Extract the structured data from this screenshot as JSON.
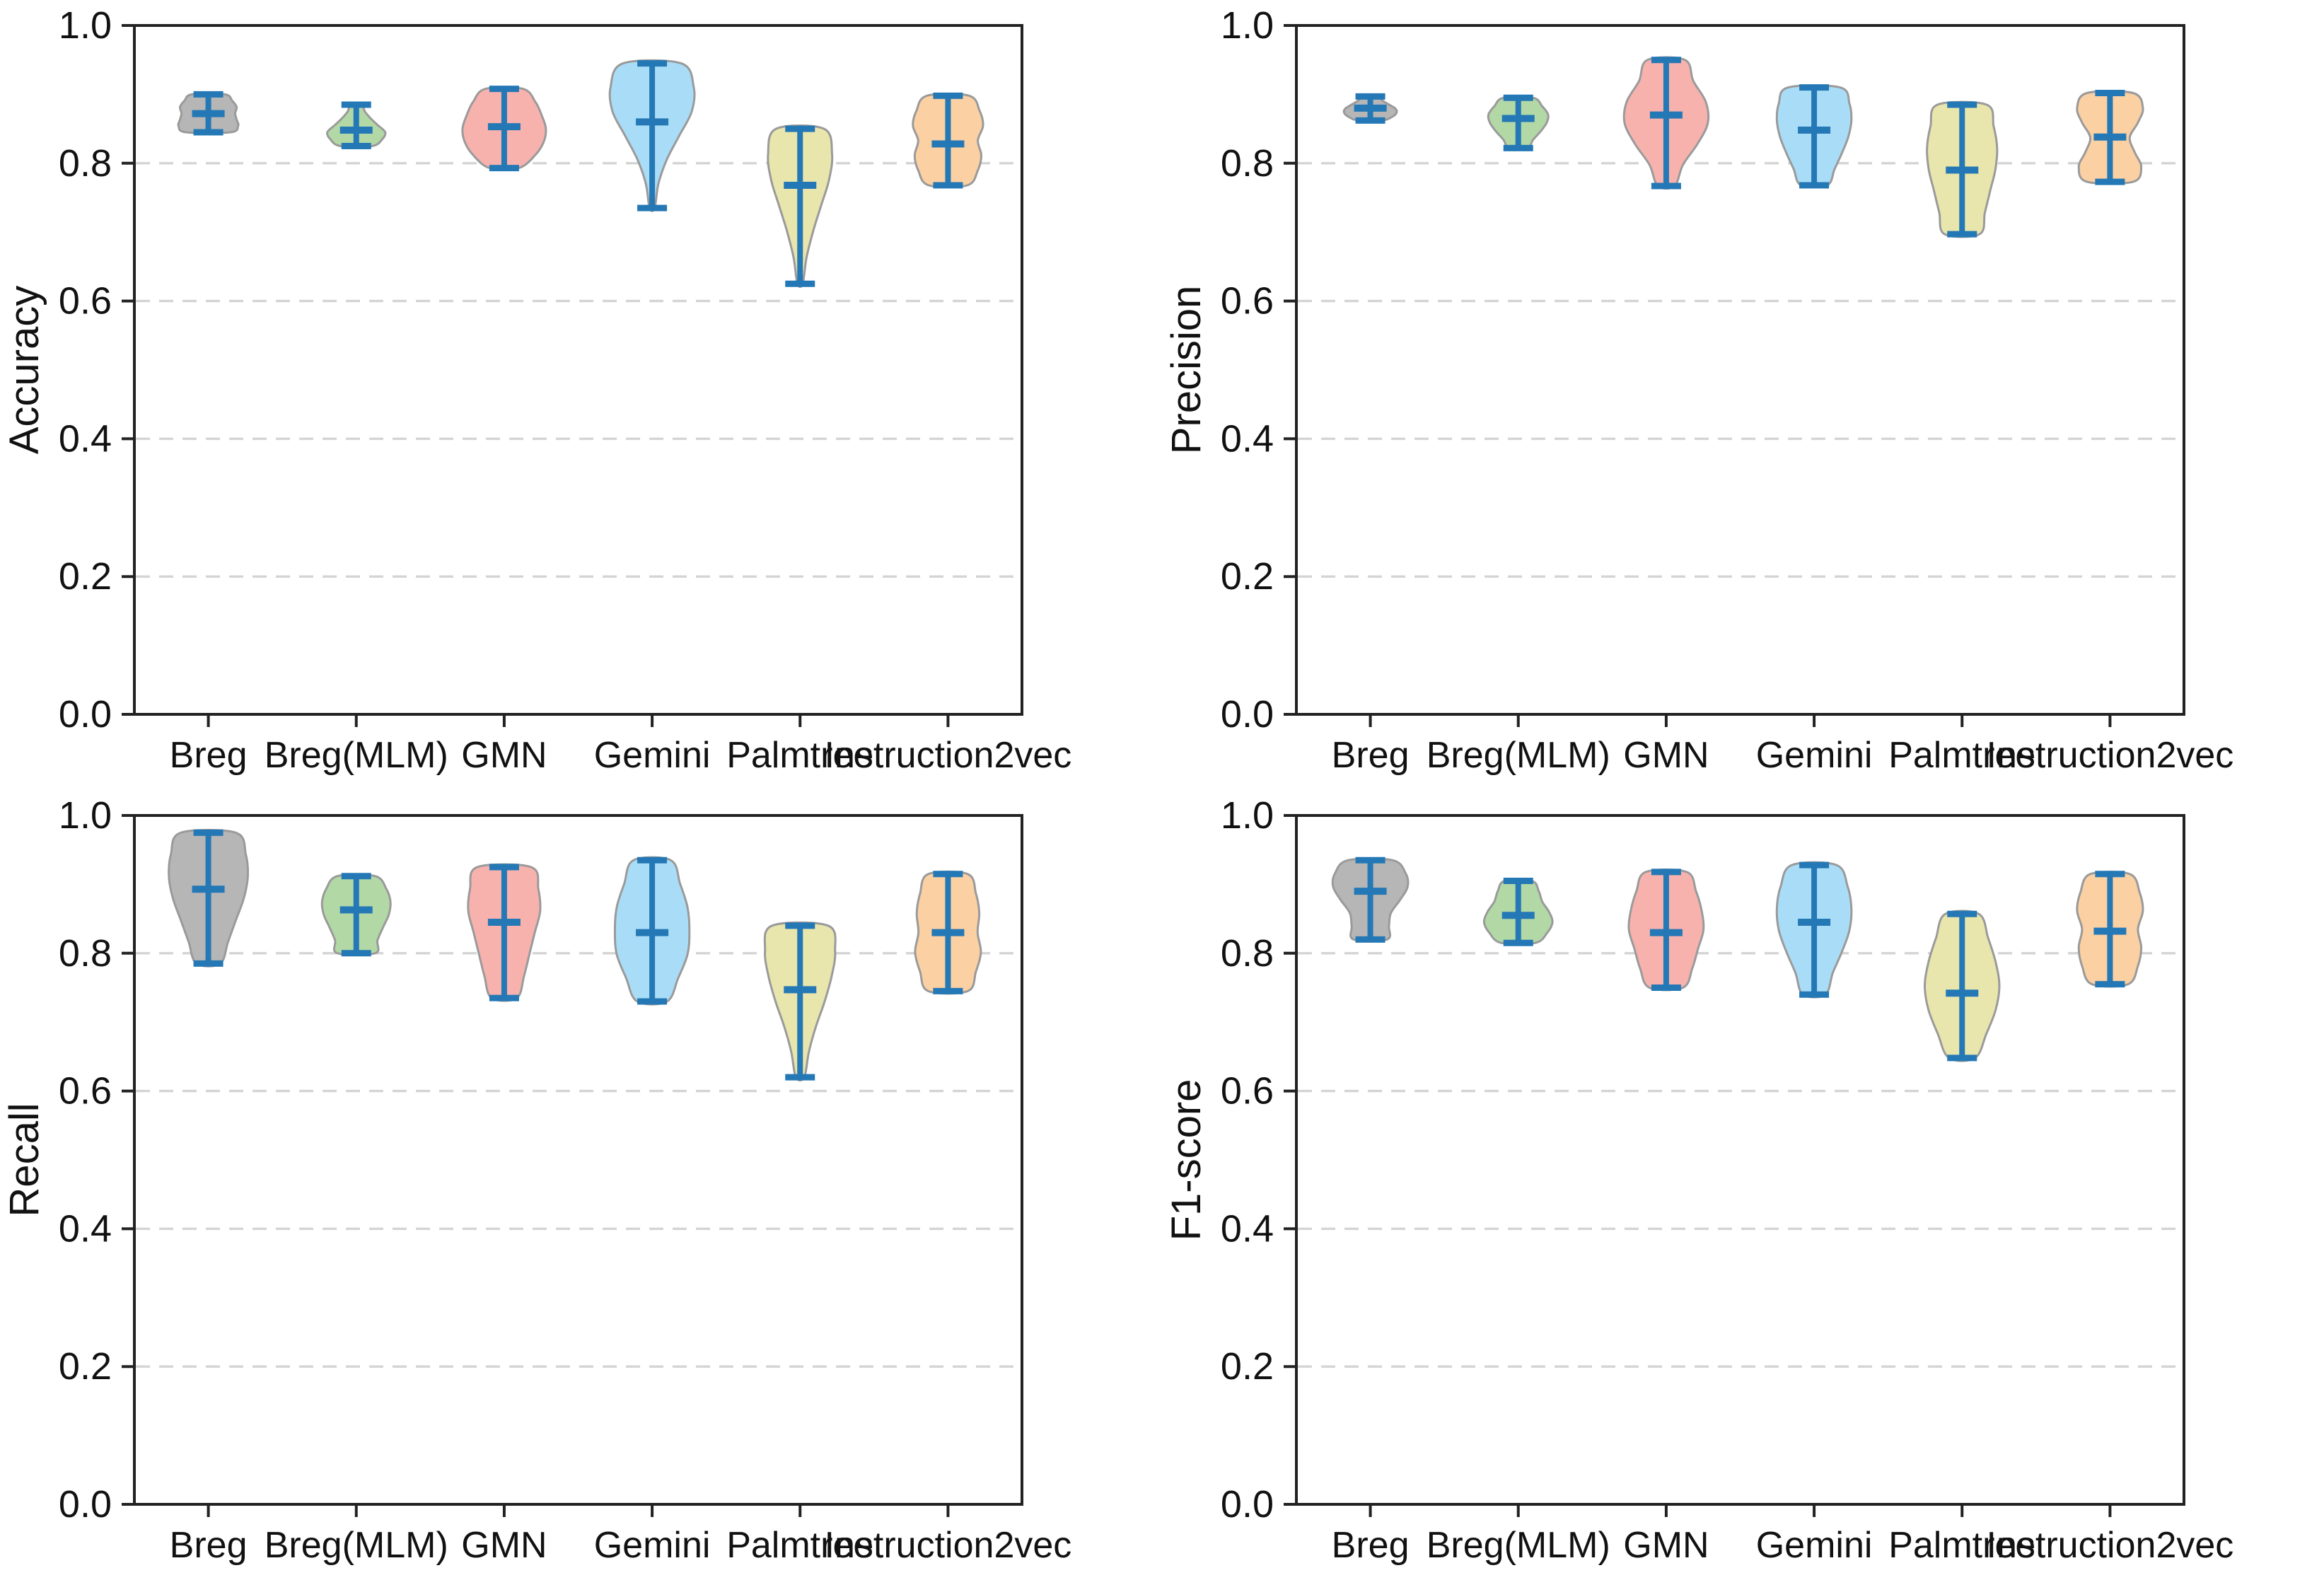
{
  "figure": {
    "background": "#ffffff",
    "panel_order": [
      "Accuracy",
      "Precision",
      "Recall",
      "F1-score"
    ]
  },
  "palette": {
    "whisker": "#2478b5",
    "violin_stroke": "#9a9a9a",
    "grid": "#d4d4d4",
    "axis": "#222222",
    "text": "#111111",
    "fills": {
      "Breg": "#b6b6b6",
      "Breg(MLM)": "#b2d8a6",
      "GMN": "#f8b2ae",
      "Gemini": "#a9ddf7",
      "Palmtree": "#e8e6ac",
      "Instruction2vec": "#fbd0a3"
    }
  },
  "chart_data": [
    {
      "type": "violin",
      "ylabel": "Accuracy",
      "ylim": [
        0.0,
        1.0
      ],
      "yticks": [
        0.0,
        0.2,
        0.4,
        0.6,
        0.8,
        1.0
      ],
      "grid_lines": [
        0.2,
        0.4,
        0.6,
        0.8
      ],
      "grid_style": "dashed",
      "legend": "none",
      "categories": [
        "Breg",
        "Breg(MLM)",
        "GMN",
        "Gemini",
        "Palmtree",
        "Instruction2vec"
      ],
      "series": [
        {
          "name": "Breg",
          "min": 0.845,
          "median": 0.872,
          "max": 0.9,
          "width": 0.68,
          "profile": [
            0.75,
            1.0,
            0.95,
            0.9,
            0.95,
            0.8,
            0.55
          ]
        },
        {
          "name": "Breg(MLM)",
          "min": 0.825,
          "median": 0.848,
          "max": 0.885,
          "width": 0.66,
          "profile": [
            0.55,
            0.9,
            1.0,
            0.75,
            0.5,
            0.3,
            0.18
          ]
        },
        {
          "name": "GMN",
          "min": 0.793,
          "median": 0.853,
          "max": 0.908,
          "width": 0.95,
          "profile": [
            0.35,
            0.75,
            0.95,
            1.0,
            0.9,
            0.75,
            0.45
          ]
        },
        {
          "name": "Gemini",
          "min": 0.735,
          "median": 0.86,
          "max": 0.945,
          "width": 0.95,
          "profile": [
            0.06,
            0.15,
            0.35,
            0.65,
            0.95,
            1.0,
            0.7
          ]
        },
        {
          "name": "Palmtree",
          "min": 0.625,
          "median": 0.768,
          "max": 0.85,
          "width": 0.73,
          "profile": [
            0.08,
            0.2,
            0.4,
            0.65,
            0.9,
            1.0,
            0.75
          ]
        },
        {
          "name": "Instruction2vec",
          "min": 0.768,
          "median": 0.828,
          "max": 0.898,
          "width": 0.8,
          "profile": [
            0.55,
            0.85,
            0.95,
            0.85,
            1.0,
            0.9,
            0.6
          ]
        }
      ]
    },
    {
      "type": "violin",
      "ylabel": "Precision",
      "ylim": [
        0.0,
        1.0
      ],
      "yticks": [
        0.0,
        0.2,
        0.4,
        0.6,
        0.8,
        1.0
      ],
      "grid_lines": [
        0.2,
        0.4,
        0.6,
        0.8
      ],
      "grid_style": "dashed",
      "legend": "none",
      "categories": [
        "Breg",
        "Breg(MLM)",
        "GMN",
        "Gemini",
        "Palmtree",
        "Instruction2vec"
      ],
      "series": [
        {
          "name": "Breg",
          "min": 0.862,
          "median": 0.88,
          "max": 0.897,
          "width": 0.6,
          "profile": [
            0.45,
            0.85,
            1.0,
            0.95,
            0.7,
            0.45,
            0.3
          ]
        },
        {
          "name": "Breg(MLM)",
          "min": 0.822,
          "median": 0.865,
          "max": 0.895,
          "width": 0.68,
          "profile": [
            0.3,
            0.5,
            0.75,
            0.95,
            1.0,
            0.8,
            0.5
          ]
        },
        {
          "name": "GMN",
          "min": 0.767,
          "median": 0.87,
          "max": 0.95,
          "width": 0.95,
          "profile": [
            0.2,
            0.4,
            0.75,
            1.0,
            0.95,
            0.65,
            0.45
          ]
        },
        {
          "name": "Gemini",
          "min": 0.768,
          "median": 0.848,
          "max": 0.91,
          "width": 0.85,
          "profile": [
            0.35,
            0.55,
            0.75,
            0.92,
            1.0,
            0.95,
            0.7
          ]
        },
        {
          "name": "Palmtree",
          "min": 0.697,
          "median": 0.79,
          "max": 0.885,
          "width": 0.8,
          "profile": [
            0.5,
            0.65,
            0.8,
            0.95,
            1.0,
            0.9,
            0.7
          ]
        },
        {
          "name": "Instruction2vec",
          "min": 0.773,
          "median": 0.838,
          "max": 0.902,
          "width": 0.75,
          "profile": [
            0.7,
            0.95,
            0.75,
            0.6,
            0.85,
            1.0,
            0.7
          ]
        }
      ]
    },
    {
      "type": "violin",
      "ylabel": "Recall",
      "ylim": [
        0.0,
        1.0
      ],
      "yticks": [
        0.0,
        0.2,
        0.4,
        0.6,
        0.8,
        1.0
      ],
      "grid_lines": [
        0.2,
        0.4,
        0.6,
        0.8
      ],
      "grid_style": "dashed",
      "legend": "none",
      "categories": [
        "Breg",
        "Breg(MLM)",
        "GMN",
        "Gemini",
        "Palmtree",
        "Instruction2vec"
      ],
      "series": [
        {
          "name": "Breg",
          "min": 0.785,
          "median": 0.893,
          "max": 0.975,
          "width": 0.9,
          "profile": [
            0.3,
            0.5,
            0.7,
            0.9,
            1.0,
            0.95,
            0.7
          ]
        },
        {
          "name": "Breg(MLM)",
          "min": 0.8,
          "median": 0.863,
          "max": 0.912,
          "width": 0.78,
          "profile": [
            0.55,
            0.62,
            0.78,
            0.95,
            1.0,
            0.88,
            0.55
          ]
        },
        {
          "name": "GMN",
          "min": 0.735,
          "median": 0.845,
          "max": 0.925,
          "width": 0.82,
          "profile": [
            0.35,
            0.55,
            0.7,
            0.85,
            1.0,
            0.95,
            0.75
          ]
        },
        {
          "name": "Gemini",
          "min": 0.73,
          "median": 0.83,
          "max": 0.935,
          "width": 0.85,
          "profile": [
            0.4,
            0.7,
            0.95,
            1.0,
            0.95,
            0.75,
            0.5
          ]
        },
        {
          "name": "Palmtree",
          "min": 0.62,
          "median": 0.747,
          "max": 0.84,
          "width": 0.8,
          "profile": [
            0.12,
            0.25,
            0.45,
            0.7,
            0.9,
            1.0,
            0.8
          ]
        },
        {
          "name": "Instruction2vec",
          "min": 0.745,
          "median": 0.83,
          "max": 0.915,
          "width": 0.75,
          "profile": [
            0.6,
            0.85,
            1.0,
            0.9,
            0.95,
            0.85,
            0.6
          ]
        }
      ]
    },
    {
      "type": "violin",
      "ylabel": "F1-score",
      "ylim": [
        0.0,
        1.0
      ],
      "yticks": [
        0.0,
        0.2,
        0.4,
        0.6,
        0.8,
        1.0
      ],
      "grid_lines": [
        0.2,
        0.4,
        0.6,
        0.8
      ],
      "grid_style": "dashed",
      "legend": "none",
      "categories": [
        "Breg",
        "Breg(MLM)",
        "GMN",
        "Gemini",
        "Palmtree",
        "Instruction2vec"
      ],
      "series": [
        {
          "name": "Breg",
          "min": 0.82,
          "median": 0.89,
          "max": 0.935,
          "width": 0.85,
          "profile": [
            0.45,
            0.5,
            0.55,
            0.8,
            1.0,
            0.95,
            0.6
          ]
        },
        {
          "name": "Breg(MLM)",
          "min": 0.815,
          "median": 0.855,
          "max": 0.905,
          "width": 0.78,
          "profile": [
            0.5,
            0.85,
            1.0,
            0.9,
            0.7,
            0.6,
            0.4
          ]
        },
        {
          "name": "GMN",
          "min": 0.75,
          "median": 0.83,
          "max": 0.918,
          "width": 0.85,
          "profile": [
            0.45,
            0.7,
            0.85,
            1.0,
            0.95,
            0.8,
            0.55
          ]
        },
        {
          "name": "Gemini",
          "min": 0.74,
          "median": 0.845,
          "max": 0.928,
          "width": 0.85,
          "profile": [
            0.3,
            0.5,
            0.75,
            0.95,
            1.0,
            0.9,
            0.6
          ]
        },
        {
          "name": "Palmtree",
          "min": 0.648,
          "median": 0.742,
          "max": 0.857,
          "width": 0.85,
          "profile": [
            0.35,
            0.65,
            0.9,
            1.0,
            0.9,
            0.7,
            0.45
          ]
        },
        {
          "name": "Instruction2vec",
          "min": 0.755,
          "median": 0.832,
          "max": 0.915,
          "width": 0.75,
          "profile": [
            0.55,
            0.85,
            0.95,
            0.85,
            1.0,
            0.9,
            0.6
          ]
        }
      ]
    }
  ]
}
